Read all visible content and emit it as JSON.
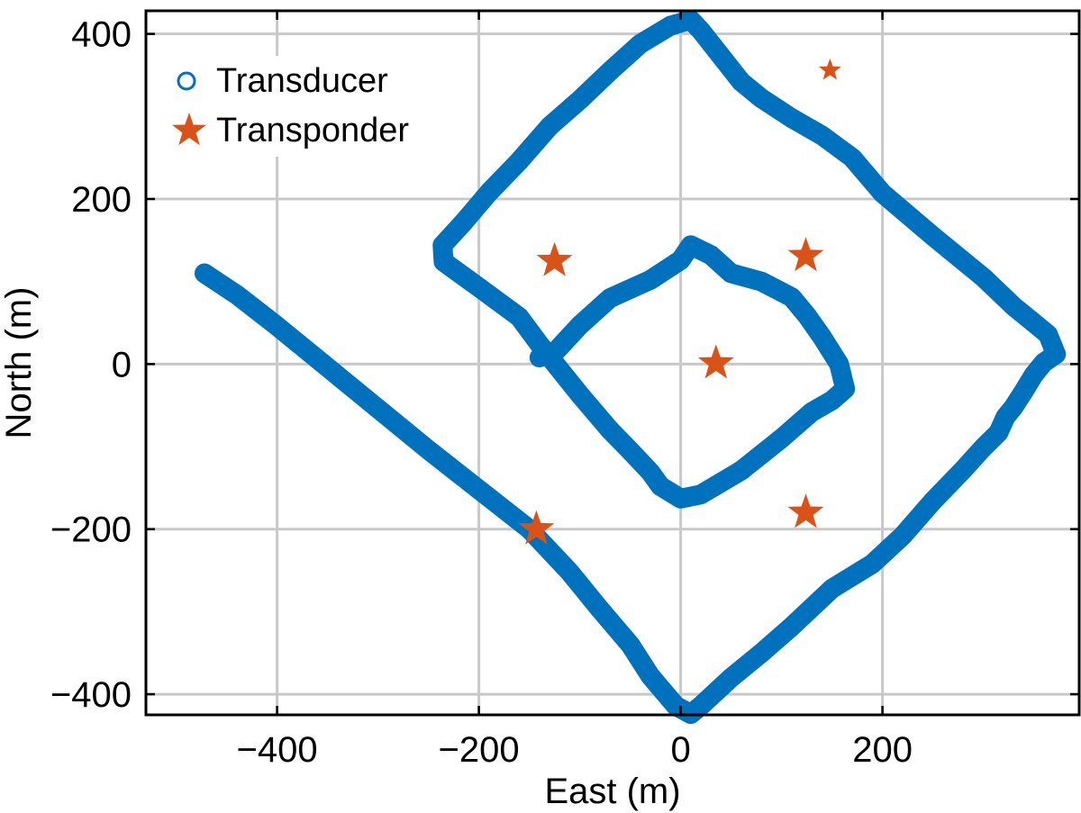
{
  "chart_data": {
    "type": "scatter",
    "title": "",
    "xlabel": "East (m)",
    "ylabel": "North (m)",
    "xlim": [
      -530,
      395
    ],
    "ylim": [
      -425,
      428
    ],
    "xticks": [
      -400,
      -200,
      0,
      200
    ],
    "yticks": [
      -400,
      -200,
      0,
      200,
      400
    ],
    "x_tick_labels": [
      "−400",
      "−200",
      "0",
      "200"
    ],
    "y_tick_labels": [
      "−400",
      "−200",
      "0",
      "200",
      "400"
    ],
    "grid": true,
    "legend": {
      "position": "top-left"
    },
    "series": [
      {
        "name": "Transducer",
        "marker": "circle",
        "color": "#0072BD",
        "points": [
          [
            -472,
            110
          ],
          [
            -440,
            84
          ],
          [
            -400,
            46
          ],
          [
            -350,
            -4
          ],
          [
            -300,
            -54
          ],
          [
            -250,
            -104
          ],
          [
            -200,
            -152
          ],
          [
            -150,
            -200
          ],
          [
            -110,
            -252
          ],
          [
            -80,
            -297
          ],
          [
            -50,
            -340
          ],
          [
            -30,
            -378
          ],
          [
            -5,
            -414
          ],
          [
            10,
            -424
          ],
          [
            20,
            -414
          ],
          [
            50,
            -380
          ],
          [
            80,
            -350
          ],
          [
            110,
            -318
          ],
          [
            150,
            -272
          ],
          [
            190,
            -242
          ],
          [
            220,
            -208
          ],
          [
            250,
            -166
          ],
          [
            280,
            -128
          ],
          [
            300,
            -101
          ],
          [
            315,
            -83
          ],
          [
            322,
            -64
          ],
          [
            330,
            -52
          ],
          [
            340,
            -33
          ],
          [
            350,
            -13
          ],
          [
            360,
            2
          ],
          [
            372,
            12
          ],
          [
            364,
            36
          ],
          [
            350,
            50
          ],
          [
            330,
            70
          ],
          [
            300,
            105
          ],
          [
            250,
            155
          ],
          [
            200,
            207
          ],
          [
            170,
            250
          ],
          [
            140,
            277
          ],
          [
            110,
            298
          ],
          [
            80,
            322
          ],
          [
            60,
            342
          ],
          [
            20,
            404
          ],
          [
            10,
            417
          ],
          [
            -10,
            410
          ],
          [
            -40,
            388
          ],
          [
            -70,
            355
          ],
          [
            -100,
            320
          ],
          [
            -130,
            288
          ],
          [
            -160,
            246
          ],
          [
            -190,
            208
          ],
          [
            -215,
            172
          ],
          [
            -236,
            144
          ],
          [
            -235,
            124
          ],
          [
            -200,
            93
          ],
          [
            -160,
            57
          ],
          [
            -140,
            24
          ],
          [
            -100,
            -37
          ],
          [
            -70,
            -80
          ],
          [
            -50,
            -105
          ],
          [
            -30,
            -131
          ],
          [
            -20,
            -148
          ],
          [
            0,
            -163
          ],
          [
            20,
            -158
          ],
          [
            60,
            -129
          ],
          [
            100,
            -90
          ],
          [
            130,
            -58
          ],
          [
            150,
            -44
          ],
          [
            163,
            -30
          ],
          [
            157,
            0
          ],
          [
            140,
            33
          ],
          [
            125,
            59
          ],
          [
            110,
            81
          ],
          [
            80,
            100
          ],
          [
            50,
            110
          ],
          [
            30,
            132
          ],
          [
            10,
            144
          ],
          [
            0,
            126
          ],
          [
            -30,
            102
          ],
          [
            -70,
            80
          ],
          [
            -100,
            47
          ],
          [
            -125,
            14
          ],
          [
            -140,
            8
          ]
        ]
      },
      {
        "name": "Transponder",
        "marker": "star",
        "color": "#D95319",
        "points": [
          [
            -125,
            125
          ],
          [
            124,
            131
          ],
          [
            35,
            1
          ],
          [
            -143,
            -200
          ],
          [
            124,
            -180
          ],
          [
            148,
            356
          ]
        ]
      }
    ]
  }
}
